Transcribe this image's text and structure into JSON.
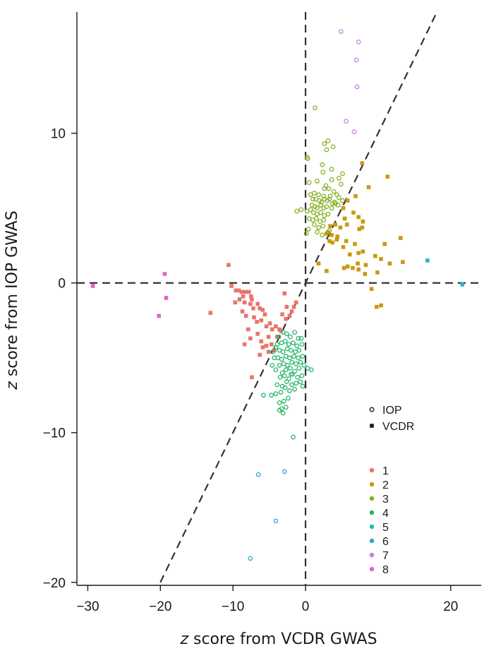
{
  "chart_data": {
    "type": "scatter",
    "xlabel_italic": "z",
    "xlabel_rest": " score from VCDR GWAS",
    "ylabel_italic": "z",
    "ylabel_rest": " score from IOP GWAS",
    "xlim": [
      -31.5,
      24.2
    ],
    "ylim": [
      -20.2,
      18.1
    ],
    "xticks": [
      -30,
      -20,
      -10,
      0,
      20
    ],
    "xtick_labels": [
      "−30",
      "−20",
      "−10",
      "0",
      "20"
    ],
    "yticks": [
      -20,
      -10,
      0,
      10
    ],
    "ytick_labels": [
      "−20",
      "−10",
      "0",
      "10"
    ],
    "reference_lines": {
      "horizontal_y": 0,
      "vertical_x": 0,
      "diagonal": {
        "x": [
          -20,
          18.2
        ],
        "y": [
          -20,
          18.2
        ]
      }
    },
    "grid": false,
    "colors": {
      "1": "#e8756b",
      "2": "#c99a10",
      "3": "#84b020",
      "4": "#22b566",
      "5": "#1cbcc4",
      "6": "#2aa6d8",
      "7": "#c47fe0",
      "8": "#e562c4"
    },
    "shape_legend": [
      {
        "label": "IOP",
        "shape": "circle"
      },
      {
        "label": "VCDR",
        "shape": "square"
      }
    ],
    "color_legend": [
      "1",
      "2",
      "3",
      "4",
      "5",
      "6",
      "7",
      "8"
    ],
    "legend_position": "bottom-right",
    "series": [
      {
        "group": "1",
        "shape": "square",
        "points": [
          [
            -10.6,
            1.2
          ],
          [
            -10.2,
            -0.2
          ],
          [
            -9.6,
            -0.5
          ],
          [
            -9.2,
            -0.5
          ],
          [
            -8.8,
            -0.6
          ],
          [
            -8.6,
            -0.9
          ],
          [
            -8.3,
            -0.6
          ],
          [
            -9.1,
            -1.1
          ],
          [
            -9.7,
            -1.3
          ],
          [
            -7.8,
            -0.6
          ],
          [
            -7.5,
            -0.9
          ],
          [
            -7.4,
            -1.1
          ],
          [
            -8.4,
            -1.3
          ],
          [
            -7.6,
            -1.4
          ],
          [
            -7.2,
            -1.7
          ],
          [
            -6.6,
            -1.4
          ],
          [
            -6.3,
            -1.7
          ],
          [
            -5.9,
            -1.8
          ],
          [
            -5.6,
            -2.1
          ],
          [
            -8.7,
            -1.9
          ],
          [
            -8.2,
            -2.2
          ],
          [
            -7.1,
            -2.3
          ],
          [
            -6.7,
            -2.6
          ],
          [
            -6.1,
            -2.5
          ],
          [
            -5.4,
            -2.9
          ],
          [
            -4.9,
            -2.7
          ],
          [
            -4.6,
            -3.1
          ],
          [
            -4.1,
            -2.9
          ],
          [
            -3.4,
            -3.2
          ],
          [
            -3.2,
            -2.1
          ],
          [
            -2.7,
            -2.4
          ],
          [
            -2.2,
            -2.2
          ],
          [
            -1.9,
            -1.9
          ],
          [
            -2.6,
            -1.6
          ],
          [
            -1.6,
            -1.6
          ],
          [
            -2.9,
            -0.7
          ],
          [
            -1.3,
            -1.3
          ],
          [
            -7.9,
            -3.1
          ],
          [
            -7.6,
            -3.7
          ],
          [
            -8.4,
            -4.1
          ],
          [
            -6.6,
            -3.4
          ],
          [
            -6.1,
            -3.9
          ],
          [
            -5.9,
            -4.3
          ],
          [
            -5.4,
            -4.2
          ],
          [
            -5.1,
            -4.6
          ],
          [
            -4.7,
            -4.1
          ],
          [
            -4.3,
            -4.5
          ],
          [
            -3.9,
            -3.6
          ],
          [
            -3.6,
            -3.1
          ],
          [
            -7.4,
            -6.3
          ],
          [
            -6.3,
            -4.8
          ],
          [
            -5.1,
            -3.6
          ],
          [
            -13.1,
            -2.0
          ]
        ]
      },
      {
        "group": "2",
        "shape": "square",
        "points": [
          [
            7.8,
            8.0
          ],
          [
            11.3,
            7.1
          ],
          [
            8.7,
            6.4
          ],
          [
            6.9,
            5.8
          ],
          [
            5.8,
            5.5
          ],
          [
            5.2,
            5.0
          ],
          [
            6.6,
            4.7
          ],
          [
            7.3,
            4.4
          ],
          [
            5.4,
            4.3
          ],
          [
            7.9,
            4.1
          ],
          [
            3.4,
            3.8
          ],
          [
            4.1,
            3.9
          ],
          [
            4.8,
            3.7
          ],
          [
            5.7,
            3.9
          ],
          [
            7.4,
            3.6
          ],
          [
            7.8,
            3.7
          ],
          [
            3.1,
            3.4
          ],
          [
            2.9,
            3.3
          ],
          [
            3.6,
            3.2
          ],
          [
            4.4,
            3.1
          ],
          [
            3.3,
            2.8
          ],
          [
            3.7,
            2.7
          ],
          [
            4.3,
            2.9
          ],
          [
            5.6,
            2.8
          ],
          [
            6.8,
            2.6
          ],
          [
            13.1,
            3.0
          ],
          [
            10.9,
            2.6
          ],
          [
            5.2,
            2.4
          ],
          [
            6.1,
            1.9
          ],
          [
            7.3,
            2.0
          ],
          [
            7.9,
            2.1
          ],
          [
            9.6,
            1.8
          ],
          [
            10.4,
            1.6
          ],
          [
            7.2,
            1.3
          ],
          [
            8.3,
            1.2
          ],
          [
            5.3,
            1.0
          ],
          [
            5.8,
            1.1
          ],
          [
            6.5,
            1.0
          ],
          [
            7.3,
            0.9
          ],
          [
            8.2,
            0.6
          ],
          [
            9.9,
            0.7
          ],
          [
            11.6,
            1.3
          ],
          [
            13.4,
            1.4
          ],
          [
            1.8,
            1.3
          ],
          [
            2.9,
            0.8
          ],
          [
            9.1,
            -0.4
          ],
          [
            10.4,
            -1.5
          ],
          [
            9.8,
            -1.6
          ]
        ]
      },
      {
        "group": "3",
        "shape": "circle",
        "points": [
          [
            1.3,
            11.7
          ],
          [
            3.1,
            9.5
          ],
          [
            2.6,
            9.3
          ],
          [
            3.8,
            9.1
          ],
          [
            2.9,
            8.9
          ],
          [
            0.2,
            8.4
          ],
          [
            0.3,
            8.3
          ],
          [
            2.3,
            7.9
          ],
          [
            3.6,
            7.6
          ],
          [
            2.4,
            7.4
          ],
          [
            5.1,
            7.3
          ],
          [
            4.6,
            7.0
          ],
          [
            3.6,
            6.9
          ],
          [
            1.6,
            6.8
          ],
          [
            0.5,
            6.7
          ],
          [
            4.9,
            6.6
          ],
          [
            2.6,
            6.3
          ],
          [
            3.9,
            6.1
          ],
          [
            0.7,
            5.9
          ],
          [
            1.2,
            6.0
          ],
          [
            1.8,
            5.9
          ],
          [
            2.5,
            5.8
          ],
          [
            3.4,
            5.8
          ],
          [
            4.3,
            5.9
          ],
          [
            1.4,
            5.6
          ],
          [
            1.9,
            5.5
          ],
          [
            2.2,
            5.4
          ],
          [
            2.6,
            5.6
          ],
          [
            3.0,
            5.5
          ],
          [
            3.3,
            5.6
          ],
          [
            4.0,
            5.4
          ],
          [
            4.6,
            5.7
          ],
          [
            5.1,
            5.5
          ],
          [
            0.9,
            5.2
          ],
          [
            1.3,
            5.1
          ],
          [
            1.6,
            5.0
          ],
          [
            2.1,
            5.2
          ],
          [
            2.5,
            5.0
          ],
          [
            2.9,
            5.1
          ],
          [
            3.6,
            5.0
          ],
          [
            0.2,
            4.8
          ],
          [
            0.7,
            4.9
          ],
          [
            1.1,
            4.7
          ],
          [
            1.6,
            4.6
          ],
          [
            2.1,
            4.7
          ],
          [
            2.6,
            4.5
          ],
          [
            3.1,
            4.6
          ],
          [
            0.5,
            4.3
          ],
          [
            1.0,
            4.2
          ],
          [
            1.5,
            4.3
          ],
          [
            2.0,
            4.1
          ],
          [
            2.5,
            4.2
          ],
          [
            1.2,
            3.9
          ],
          [
            1.8,
            3.7
          ],
          [
            2.4,
            3.8
          ],
          [
            1.6,
            3.4
          ],
          [
            2.3,
            3.2
          ],
          [
            3.3,
            3.5
          ],
          [
            0.1,
            3.3
          ],
          [
            0.4,
            3.6
          ],
          [
            -0.6,
            4.9
          ],
          [
            -1.2,
            4.8
          ],
          [
            4.1,
            5.3
          ],
          [
            4.5,
            5.2
          ],
          [
            2.8,
            6.5
          ],
          [
            3.2,
            6.3
          ],
          [
            1.0,
            5.6
          ],
          [
            3.7,
            5.3
          ]
        ]
      },
      {
        "group": "4",
        "shape": "circle",
        "points": [
          [
            -1.5,
            -3.3
          ],
          [
            -2.1,
            -3.6
          ],
          [
            -2.6,
            -3.4
          ],
          [
            -3.1,
            -3.3
          ],
          [
            -3.7,
            -3.6
          ],
          [
            -1.0,
            -3.7
          ],
          [
            -0.6,
            -3.7
          ],
          [
            -0.5,
            -4.1
          ],
          [
            -1.2,
            -4.2
          ],
          [
            -1.7,
            -4.0
          ],
          [
            -2.3,
            -4.1
          ],
          [
            -2.8,
            -3.9
          ],
          [
            -3.3,
            -4.0
          ],
          [
            -3.9,
            -4.1
          ],
          [
            -0.9,
            -4.5
          ],
          [
            -1.4,
            -4.6
          ],
          [
            -2.0,
            -4.5
          ],
          [
            -2.5,
            -4.4
          ],
          [
            -3.1,
            -4.6
          ],
          [
            -3.6,
            -4.5
          ],
          [
            -4.1,
            -4.3
          ],
          [
            -4.5,
            -4.6
          ],
          [
            -0.4,
            -4.9
          ],
          [
            -1.0,
            -5.0
          ],
          [
            -1.6,
            -4.9
          ],
          [
            -2.2,
            -5.0
          ],
          [
            -2.7,
            -4.9
          ],
          [
            -3.3,
            -5.1
          ],
          [
            -3.8,
            -5.0
          ],
          [
            -4.3,
            -5.0
          ],
          [
            -0.7,
            -5.3
          ],
          [
            -1.3,
            -5.4
          ],
          [
            -1.9,
            -5.3
          ],
          [
            -2.5,
            -5.5
          ],
          [
            -3.0,
            -5.4
          ],
          [
            -3.6,
            -5.5
          ],
          [
            -0.9,
            -5.7
          ],
          [
            -1.5,
            -5.9
          ],
          [
            -2.1,
            -5.7
          ],
          [
            -2.7,
            -5.8
          ],
          [
            -3.2,
            -6.0
          ],
          [
            -0.5,
            -6.2
          ],
          [
            -1.1,
            -6.3
          ],
          [
            -1.8,
            -6.1
          ],
          [
            -2.3,
            -6.4
          ],
          [
            -2.9,
            -6.2
          ],
          [
            -3.5,
            -6.3
          ],
          [
            -0.7,
            -6.6
          ],
          [
            -1.3,
            -6.7
          ],
          [
            -1.9,
            -6.8
          ],
          [
            -2.6,
            -6.6
          ],
          [
            -3.2,
            -6.9
          ],
          [
            -3.9,
            -6.8
          ],
          [
            -1.5,
            -7.1
          ],
          [
            -2.2,
            -7.2
          ],
          [
            -2.8,
            -7.0
          ],
          [
            -3.4,
            -7.3
          ],
          [
            -4.1,
            -7.4
          ],
          [
            -4.7,
            -7.5
          ],
          [
            -5.8,
            -7.5
          ],
          [
            -2.4,
            -7.7
          ],
          [
            -3.0,
            -7.9
          ],
          [
            -3.6,
            -8.0
          ],
          [
            -2.7,
            -8.3
          ],
          [
            -3.3,
            -8.4
          ],
          [
            -3.1,
            -8.7
          ],
          [
            -3.6,
            -8.5
          ],
          [
            -4.1,
            -5.8
          ],
          [
            -4.6,
            -5.5
          ],
          [
            -0.2,
            -5.5
          ],
          [
            0.3,
            -5.7
          ],
          [
            0.8,
            -5.8
          ],
          [
            -1.7,
            -10.3
          ],
          [
            -0.4,
            -6.9
          ],
          [
            -2.0,
            -6.1
          ]
        ]
      },
      {
        "group": "5",
        "shape": "square",
        "points": [
          [
            16.8,
            1.5
          ],
          [
            21.6,
            -0.1
          ]
        ]
      },
      {
        "group": "6",
        "shape": "circle",
        "points": [
          [
            -6.5,
            -12.8
          ],
          [
            -2.9,
            -12.6
          ],
          [
            -4.1,
            -15.9
          ],
          [
            -7.6,
            -18.4
          ]
        ]
      },
      {
        "group": "7",
        "shape": "circle",
        "points": [
          [
            4.9,
            16.8
          ],
          [
            7.3,
            16.1
          ],
          [
            7.0,
            14.9
          ],
          [
            7.1,
            13.1
          ],
          [
            5.6,
            10.8
          ],
          [
            6.7,
            10.1
          ]
        ]
      },
      {
        "group": "8",
        "shape": "square",
        "points": [
          [
            -29.3,
            -0.2
          ],
          [
            -19.4,
            0.6
          ],
          [
            -19.2,
            -1.0
          ],
          [
            -20.2,
            -2.2
          ]
        ]
      }
    ]
  }
}
